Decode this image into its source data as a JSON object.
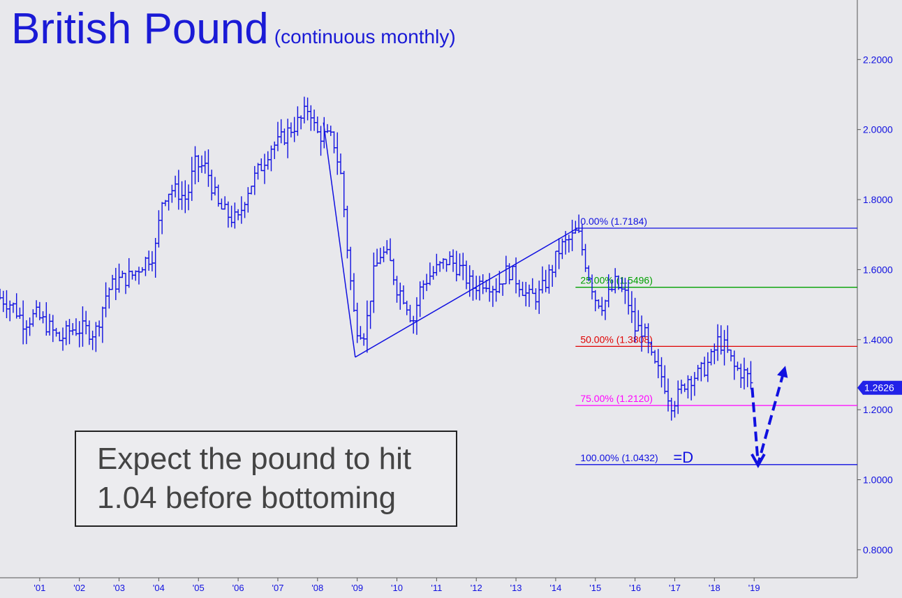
{
  "title": "British Pound",
  "subtitle": "(continuous monthly)",
  "callout": {
    "line1": "Expect the pound to hit",
    "line2": "1.04 before bottoming"
  },
  "colors": {
    "series": "#1010e0",
    "background": "#e8e8ec",
    "fib0": "#1010e0",
    "fib25": "#00a000",
    "fib50": "#e00000",
    "fib75": "#ff00ff",
    "fib100": "#1010e0",
    "axis": "#555555"
  },
  "chart_data": {
    "type": "bar",
    "title": "British Pound",
    "subtitle": "(continuous monthly)",
    "xlabel": "",
    "ylabel": "",
    "x_range": [
      2000.0,
      2021.6
    ],
    "ylim": [
      0.72,
      2.37
    ],
    "x_ticks": [
      {
        "label": "'01",
        "x": 2001.0
      },
      {
        "label": "'02",
        "x": 2002.0
      },
      {
        "label": "'03",
        "x": 2003.0
      },
      {
        "label": "'04",
        "x": 2004.0
      },
      {
        "label": "'05",
        "x": 2005.0
      },
      {
        "label": "'06",
        "x": 2006.0
      },
      {
        "label": "'07",
        "x": 2007.0
      },
      {
        "label": "'08",
        "x": 2008.0
      },
      {
        "label": "'09",
        "x": 2009.0
      },
      {
        "label": "'10",
        "x": 2010.0
      },
      {
        "label": "'11",
        "x": 2011.0
      },
      {
        "label": "'12",
        "x": 2012.0
      },
      {
        "label": "'13",
        "x": 2013.0
      },
      {
        "label": "'14",
        "x": 2014.0
      },
      {
        "label": "'15",
        "x": 2015.0
      },
      {
        "label": "'16",
        "x": 2016.0
      },
      {
        "label": "'17",
        "x": 2017.0
      },
      {
        "label": "'18",
        "x": 2018.0
      },
      {
        "label": "'19",
        "x": 2019.0
      }
    ],
    "y_ticks": [
      {
        "label": "2.2000",
        "value": 2.2
      },
      {
        "label": "2.0000",
        "value": 2.0
      },
      {
        "label": "1.8000",
        "value": 1.8
      },
      {
        "label": "1.6000",
        "value": 1.6
      },
      {
        "label": "1.4000",
        "value": 1.4
      },
      {
        "label": "1.2000",
        "value": 1.2
      },
      {
        "label": "1.0000",
        "value": 1.0
      },
      {
        "label": "0.8000",
        "value": 0.8
      }
    ],
    "last_price": {
      "label": "1.2626",
      "value": 1.2626
    },
    "series_points": [
      [
        2000.0,
        1.52
      ],
      [
        2000.3,
        1.5
      ],
      [
        2000.6,
        1.45
      ],
      [
        2000.9,
        1.47
      ],
      [
        2001.2,
        1.44
      ],
      [
        2001.5,
        1.4
      ],
      [
        2001.8,
        1.43
      ],
      [
        2002.1,
        1.43
      ],
      [
        2002.4,
        1.42
      ],
      [
        2002.7,
        1.54
      ],
      [
        2003.0,
        1.57
      ],
      [
        2003.3,
        1.58
      ],
      [
        2003.6,
        1.62
      ],
      [
        2003.9,
        1.65
      ],
      [
        2004.1,
        1.81
      ],
      [
        2004.3,
        1.83
      ],
      [
        2004.5,
        1.82
      ],
      [
        2004.7,
        1.8
      ],
      [
        2004.9,
        1.9
      ],
      [
        2005.2,
        1.89
      ],
      [
        2005.5,
        1.78
      ],
      [
        2005.8,
        1.75
      ],
      [
        2006.0,
        1.74
      ],
      [
        2006.2,
        1.82
      ],
      [
        2006.4,
        1.86
      ],
      [
        2006.6,
        1.9
      ],
      [
        2006.8,
        1.95
      ],
      [
        2007.0,
        1.96
      ],
      [
        2007.3,
        2.0
      ],
      [
        2007.6,
        2.03
      ],
      [
        2007.8,
        2.07
      ],
      [
        2007.95,
        1.99
      ],
      [
        2008.2,
        1.98
      ],
      [
        2008.4,
        1.97
      ],
      [
        2008.6,
        1.86
      ],
      [
        2008.8,
        1.6
      ],
      [
        2008.95,
        1.44
      ],
      [
        2009.2,
        1.42
      ],
      [
        2009.4,
        1.58
      ],
      [
        2009.6,
        1.65
      ],
      [
        2009.8,
        1.63
      ],
      [
        2010.0,
        1.55
      ],
      [
        2010.2,
        1.52
      ],
      [
        2010.4,
        1.45
      ],
      [
        2010.6,
        1.55
      ],
      [
        2010.8,
        1.58
      ],
      [
        2011.0,
        1.6
      ],
      [
        2011.3,
        1.63
      ],
      [
        2011.6,
        1.6
      ],
      [
        2011.9,
        1.55
      ],
      [
        2012.2,
        1.57
      ],
      [
        2012.5,
        1.55
      ],
      [
        2012.8,
        1.6
      ],
      [
        2013.1,
        1.56
      ],
      [
        2013.3,
        1.52
      ],
      [
        2013.6,
        1.53
      ],
      [
        2013.9,
        1.6
      ],
      [
        2014.1,
        1.66
      ],
      [
        2014.4,
        1.69
      ],
      [
        2014.55,
        1.71
      ],
      [
        2014.8,
        1.6
      ],
      [
        2015.0,
        1.52
      ],
      [
        2015.2,
        1.5
      ],
      [
        2015.5,
        1.56
      ],
      [
        2015.8,
        1.52
      ],
      [
        2016.0,
        1.43
      ],
      [
        2016.2,
        1.43
      ],
      [
        2016.45,
        1.33
      ],
      [
        2016.7,
        1.29
      ],
      [
        2016.9,
        1.22
      ],
      [
        2017.1,
        1.24
      ],
      [
        2017.3,
        1.29
      ],
      [
        2017.6,
        1.3
      ],
      [
        2017.9,
        1.34
      ],
      [
        2018.1,
        1.4
      ],
      [
        2018.3,
        1.37
      ],
      [
        2018.5,
        1.32
      ],
      [
        2018.8,
        1.3
      ],
      [
        2018.95,
        1.27
      ]
    ],
    "trendlines": [
      {
        "from": [
          2008.15,
          2.02
        ],
        "to": [
          2008.95,
          1.35
        ]
      },
      {
        "from": [
          2008.95,
          1.35
        ],
        "to": [
          2014.55,
          1.7184
        ]
      }
    ],
    "projection": {
      "path": [
        [
          2018.95,
          1.2626
        ],
        [
          2019.1,
          1.045
        ],
        [
          2019.75,
          1.31
        ]
      ],
      "style": "dashed-arrow"
    },
    "fib_levels": [
      {
        "label": "0.00% (1.7184)",
        "value": 1.7184,
        "color": "#1010e0"
      },
      {
        "label": "25.00% (1.5496)",
        "value": 1.5496,
        "color": "#00a000"
      },
      {
        "label": "50.00% (1.3808)",
        "value": 1.3808,
        "color": "#e00000"
      },
      {
        "label": "75.00% (1.2120)",
        "value": 1.212,
        "color": "#ff00ff"
      },
      {
        "label": "100.00% (1.0432)",
        "value": 1.0432,
        "color": "#1010e0",
        "suffix": "=D"
      }
    ],
    "fib_start_x": 2014.5
  }
}
